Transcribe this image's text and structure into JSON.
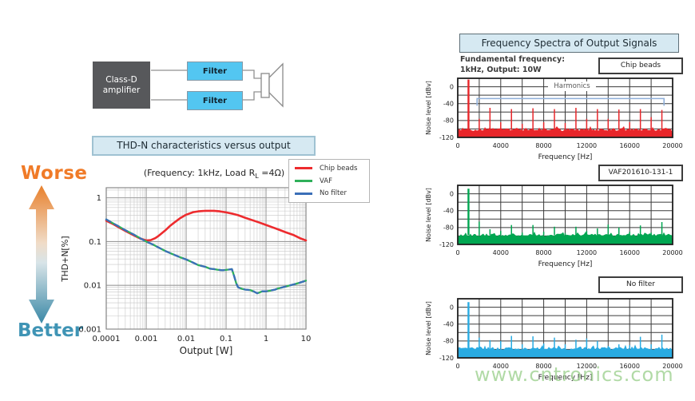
{
  "block_diagram": {
    "amplifier_label_line1": "Class-D",
    "amplifier_label_line2": "amplifier",
    "filter_top_label": "Filter",
    "filter_bottom_label": "Filter",
    "amp_color": "#57585B",
    "filter_color": "#53C6F1"
  },
  "thd_chart": {
    "title": "THD-N characteristics versus output",
    "condition_prefix": "(Frequency: 1kHz, Load R",
    "condition_sub": "L",
    "condition_suffix": " =4Ω)",
    "worse_label": "Worse",
    "better_label": "Better",
    "worse_color": "#F07B28",
    "better_color": "#3F94B5",
    "arrow_gradient": [
      "#E8802C",
      "#F0DCC8",
      "#D8E4E8",
      "#3A88A6"
    ],
    "legend": [
      {
        "label": "Chip beads",
        "color": "#ED2B2E"
      },
      {
        "label": "VAF",
        "color": "#2FB05A"
      },
      {
        "label": "No filter",
        "color": "#3B6FB8"
      }
    ]
  },
  "spectra": {
    "title": "Frequency Spectra of Output Signals",
    "note_line1": "Fundamental frequency:",
    "note_line2": "1kHz, Output: 10W",
    "harmonics_label": "Harmonics",
    "panels": [
      {
        "label": "Chip beads",
        "color": "#E8262A"
      },
      {
        "label": "VAF201610-131-1",
        "color": "#00A651"
      },
      {
        "label": "No filter",
        "color": "#29ABE2"
      }
    ]
  },
  "watermark": {
    "text": "www.cntronics.com",
    "color": "#9ED190"
  },
  "chart_data": [
    {
      "type": "line",
      "title": "THD-N characteristics versus output",
      "xlabel": "Output [W]",
      "ylabel": "THD+N[%]",
      "xscale": "log",
      "yscale": "log",
      "xlim": [
        0.0001,
        10
      ],
      "ylim": [
        0.001,
        1.7
      ],
      "x_ticks": [
        0.0001,
        0.001,
        0.01,
        0.1,
        1,
        10
      ],
      "x_tick_labels": [
        "0.0001",
        "0.001",
        "0.01",
        "0.1",
        "1",
        "10"
      ],
      "y_ticks": [
        1,
        0.1,
        0.01,
        0.001
      ],
      "y_tick_labels": [
        "1",
        "0.1",
        "0.01",
        "0.001"
      ],
      "grid": true,
      "legend_position": "upper-right-outside",
      "series": [
        {
          "name": "Chip beads",
          "color": "#ED2B2E",
          "style": "solid",
          "points": [
            [
              0.0001,
              0.3
            ],
            [
              0.00015,
              0.25
            ],
            [
              0.0002,
              0.215
            ],
            [
              0.0003,
              0.175
            ],
            [
              0.0005,
              0.138
            ],
            [
              0.0007,
              0.118
            ],
            [
              0.001,
              0.106
            ],
            [
              0.0013,
              0.108
            ],
            [
              0.0017,
              0.12
            ],
            [
              0.002,
              0.133
            ],
            [
              0.003,
              0.18
            ],
            [
              0.004,
              0.23
            ],
            [
              0.005,
              0.27
            ],
            [
              0.007,
              0.34
            ],
            [
              0.01,
              0.41
            ],
            [
              0.015,
              0.47
            ],
            [
              0.02,
              0.49
            ],
            [
              0.03,
              0.505
            ],
            [
              0.05,
              0.505
            ],
            [
              0.07,
              0.49
            ],
            [
              0.1,
              0.465
            ],
            [
              0.15,
              0.43
            ],
            [
              0.2,
              0.4
            ],
            [
              0.3,
              0.35
            ],
            [
              0.5,
              0.3
            ],
            [
              0.7,
              0.27
            ],
            [
              1,
              0.24
            ],
            [
              1.5,
              0.21
            ],
            [
              2,
              0.19
            ],
            [
              3,
              0.165
            ],
            [
              5,
              0.14
            ],
            [
              7,
              0.12
            ],
            [
              10,
              0.106
            ]
          ]
        },
        {
          "name": "VAF",
          "color": "#2FB05A",
          "style": "solid",
          "points": [
            [
              0.0001,
              0.32
            ],
            [
              0.00015,
              0.26
            ],
            [
              0.0002,
              0.225
            ],
            [
              0.0003,
              0.182
            ],
            [
              0.0005,
              0.143
            ],
            [
              0.0007,
              0.12
            ],
            [
              0.001,
              0.1
            ],
            [
              0.0015,
              0.085
            ],
            [
              0.002,
              0.074
            ],
            [
              0.003,
              0.061
            ],
            [
              0.005,
              0.05
            ],
            [
              0.007,
              0.044
            ],
            [
              0.01,
              0.039
            ],
            [
              0.015,
              0.033
            ],
            [
              0.02,
              0.029
            ],
            [
              0.03,
              0.0265
            ],
            [
              0.04,
              0.024
            ],
            [
              0.05,
              0.0235
            ],
            [
              0.06,
              0.0228
            ],
            [
              0.08,
              0.022
            ],
            [
              0.1,
              0.0225
            ],
            [
              0.12,
              0.023
            ],
            [
              0.14,
              0.0235
            ],
            [
              0.16,
              0.016
            ],
            [
              0.18,
              0.011
            ],
            [
              0.2,
              0.009
            ],
            [
              0.25,
              0.0083
            ],
            [
              0.3,
              0.008
            ],
            [
              0.4,
              0.0078
            ],
            [
              0.5,
              0.0072
            ],
            [
              0.6,
              0.0066
            ],
            [
              0.7,
              0.0069
            ],
            [
              0.8,
              0.0073
            ],
            [
              1,
              0.0073
            ],
            [
              1.3,
              0.0076
            ],
            [
              1.7,
              0.008
            ],
            [
              2,
              0.0085
            ],
            [
              3,
              0.0093
            ],
            [
              4,
              0.01
            ],
            [
              5,
              0.0105
            ],
            [
              7,
              0.0115
            ],
            [
              10,
              0.0128
            ]
          ]
        },
        {
          "name": "No filter",
          "color": "#3B6FB8",
          "style": "dashed",
          "points": [
            [
              0.0001,
              0.32
            ],
            [
              0.00015,
              0.26
            ],
            [
              0.0002,
              0.225
            ],
            [
              0.0003,
              0.182
            ],
            [
              0.0005,
              0.143
            ],
            [
              0.0007,
              0.12
            ],
            [
              0.001,
              0.1
            ],
            [
              0.0015,
              0.085
            ],
            [
              0.002,
              0.074
            ],
            [
              0.003,
              0.061
            ],
            [
              0.005,
              0.05
            ],
            [
              0.007,
              0.044
            ],
            [
              0.01,
              0.039
            ],
            [
              0.015,
              0.033
            ],
            [
              0.02,
              0.029
            ],
            [
              0.03,
              0.0265
            ],
            [
              0.04,
              0.024
            ],
            [
              0.05,
              0.0235
            ],
            [
              0.06,
              0.0228
            ],
            [
              0.08,
              0.022
            ],
            [
              0.1,
              0.0225
            ],
            [
              0.12,
              0.023
            ],
            [
              0.14,
              0.0235
            ],
            [
              0.16,
              0.016
            ],
            [
              0.18,
              0.011
            ],
            [
              0.2,
              0.009
            ],
            [
              0.25,
              0.0083
            ],
            [
              0.3,
              0.008
            ],
            [
              0.4,
              0.0078
            ],
            [
              0.5,
              0.0072
            ],
            [
              0.6,
              0.0066
            ],
            [
              0.7,
              0.0069
            ],
            [
              0.8,
              0.0073
            ],
            [
              1,
              0.0073
            ],
            [
              1.3,
              0.0076
            ],
            [
              1.7,
              0.008
            ],
            [
              2,
              0.0085
            ],
            [
              3,
              0.0093
            ],
            [
              4,
              0.01
            ],
            [
              5,
              0.0105
            ],
            [
              7,
              0.0115
            ],
            [
              10,
              0.0128
            ]
          ]
        }
      ]
    },
    {
      "type": "bar",
      "title": "Chip beads",
      "xlabel": "Frequency [Hz]",
      "ylabel": "Noise level [dBv]",
      "xlim": [
        0,
        20000
      ],
      "ylim": [
        -120,
        20
      ],
      "x_ticks": [
        0,
        4000,
        8000,
        12000,
        16000,
        20000
      ],
      "y_ticks": [
        0,
        -40,
        -80,
        -120
      ],
      "color": "#E8262A",
      "seed": 11,
      "noise_floor": -102,
      "peaks": [
        [
          1000,
          17
        ],
        [
          2000,
          -76
        ],
        [
          3000,
          -50
        ],
        [
          4000,
          -84
        ],
        [
          5000,
          -53
        ],
        [
          6000,
          -88
        ],
        [
          7000,
          -51
        ],
        [
          8000,
          -84
        ],
        [
          9000,
          -53
        ],
        [
          10000,
          -86
        ],
        [
          11000,
          -50
        ],
        [
          12000,
          -76
        ],
        [
          13000,
          -53
        ],
        [
          14000,
          -76
        ],
        [
          15000,
          -54
        ],
        [
          16000,
          -84
        ],
        [
          17000,
          -53
        ],
        [
          18000,
          -72
        ],
        [
          19000,
          -55
        ]
      ],
      "bracket": {
        "x1": 1800,
        "x2": 19200,
        "y": -28,
        "y_end": -45,
        "color": "#8FAFD9"
      }
    },
    {
      "type": "bar",
      "title": "VAF201610-131-1",
      "xlabel": "Frequency [Hz]",
      "ylabel": "Noise level [dBv]",
      "xlim": [
        0,
        20000
      ],
      "ylim": [
        -120,
        20
      ],
      "x_ticks": [
        0,
        4000,
        8000,
        12000,
        16000,
        20000
      ],
      "y_ticks": [
        0,
        -40,
        -80,
        -120
      ],
      "color": "#00A651",
      "seed": 52,
      "noise_floor": -98,
      "peaks": [
        [
          1000,
          12
        ],
        [
          2000,
          -66
        ],
        [
          3000,
          -84
        ],
        [
          4000,
          -88
        ],
        [
          5000,
          -74
        ],
        [
          6000,
          -92
        ],
        [
          7000,
          -74
        ],
        [
          8000,
          -90
        ],
        [
          9000,
          -78
        ],
        [
          10000,
          -93
        ],
        [
          11000,
          -78
        ],
        [
          12000,
          -88
        ],
        [
          13000,
          -82
        ],
        [
          14000,
          -73
        ],
        [
          15000,
          -80
        ],
        [
          16000,
          -90
        ],
        [
          17000,
          -75
        ],
        [
          18000,
          -92
        ],
        [
          19000,
          -67
        ]
      ]
    },
    {
      "type": "bar",
      "title": "No filter",
      "xlabel": "Frequency [Hz]",
      "ylabel": "Noise level [dBv]",
      "xlim": [
        0,
        20000
      ],
      "ylim": [
        -120,
        20
      ],
      "x_ticks": [
        0,
        4000,
        8000,
        12000,
        16000,
        20000
      ],
      "y_ticks": [
        0,
        -40,
        -80,
        -120
      ],
      "color": "#29ABE2",
      "seed": 93,
      "noise_floor": -98,
      "peaks": [
        [
          1000,
          12
        ],
        [
          2000,
          -72
        ],
        [
          3000,
          -78
        ],
        [
          4000,
          -80
        ],
        [
          5000,
          -68
        ],
        [
          6000,
          -88
        ],
        [
          7000,
          -69
        ],
        [
          8000,
          -86
        ],
        [
          9000,
          -72
        ],
        [
          10000,
          -88
        ],
        [
          11000,
          -77
        ],
        [
          12000,
          -74
        ],
        [
          13000,
          -80
        ],
        [
          14000,
          -92
        ],
        [
          15000,
          -88
        ],
        [
          16000,
          -90
        ],
        [
          17000,
          -70
        ],
        [
          18000,
          -88
        ],
        [
          19000,
          -65
        ]
      ]
    }
  ]
}
